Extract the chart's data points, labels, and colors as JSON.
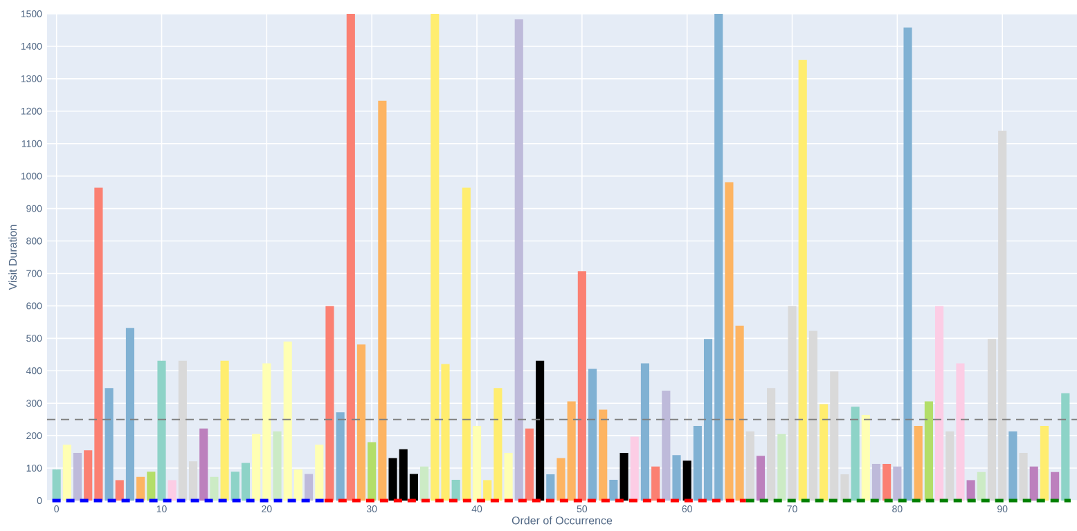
{
  "chart_data": {
    "type": "bar",
    "xlabel": "Order of Occurrence",
    "ylabel": "Visit Duration",
    "xlim": [
      -0.9,
      97.1
    ],
    "ylim": [
      0,
      1500
    ],
    "xticks": [
      0,
      10,
      20,
      30,
      40,
      50,
      60,
      70,
      80,
      90
    ],
    "yticks": [
      0,
      100,
      200,
      300,
      400,
      500,
      600,
      700,
      800,
      900,
      1000,
      1100,
      1200,
      1300,
      1400,
      1500
    ],
    "grid": true,
    "ref_lines": [
      {
        "axis": "y",
        "value": 250,
        "color": "#808080",
        "line_style": "dashed"
      }
    ],
    "series": [
      {
        "x": [
          0,
          1,
          2,
          3,
          4,
          5,
          6,
          7,
          8,
          9,
          10,
          11,
          12,
          13,
          14,
          15,
          16,
          17,
          18,
          19,
          20,
          21,
          22,
          23,
          24,
          25,
          26,
          27,
          28,
          29,
          30,
          31,
          32,
          33,
          34,
          35,
          36,
          37,
          38,
          39,
          40,
          41,
          42,
          43,
          44,
          45,
          46,
          47,
          48,
          49,
          50,
          51,
          52,
          53,
          54,
          55,
          56,
          57,
          58,
          59,
          60,
          61,
          62,
          63,
          64,
          65,
          66,
          67,
          68,
          69,
          70,
          71,
          72,
          73,
          74,
          75,
          76,
          77,
          78,
          79,
          80,
          81,
          82,
          83,
          84,
          85,
          86,
          87,
          88,
          89,
          90,
          91,
          92,
          93,
          94,
          95,
          96
        ],
        "values": [
          96,
          172,
          147,
          155,
          964,
          347,
          63,
          532,
          73,
          89,
          431,
          63,
          431,
          121,
          222,
          73,
          431,
          89,
          116,
          205,
          423,
          213,
          490,
          96,
          82,
          172,
          599,
          272,
          1500,
          481,
          180,
          1232,
          131,
          158,
          82,
          105,
          1500,
          421,
          64,
          964,
          230,
          63,
          347,
          147,
          1483,
          222,
          431,
          81,
          131,
          306,
          707,
          406,
          280,
          64,
          147,
          197,
          423,
          105,
          339,
          140,
          123,
          230,
          498,
          1500,
          981,
          539,
          213,
          138,
          347,
          205,
          599,
          1358,
          523,
          297,
          398,
          81,
          289,
          264,
          113,
          113,
          105,
          1458,
          230,
          306,
          599,
          213,
          423,
          63,
          88,
          498,
          1140,
          213,
          147,
          105,
          230,
          88,
          331
        ],
        "colors": [
          "#8dd3c7",
          "#ffffb3",
          "#bebada",
          "#fb8072",
          "#fb8072",
          "#80b1d3",
          "#fb8072",
          "#80b1d3",
          "#fdb462",
          "#b3de69",
          "#8dd3c7",
          "#fccde5",
          "#d9d9d9",
          "#d9d9d9",
          "#bc80bd",
          "#ccebc5",
          "#ffed6f",
          "#8dd3c7",
          "#8dd3c7",
          "#ffffb3",
          "#ffffb3",
          "#ccebc5",
          "#ffffb3",
          "#ffffb3",
          "#bebada",
          "#ffffb3",
          "#fb8072",
          "#80b1d3",
          "#fb8072",
          "#fdb462",
          "#b3de69",
          "#fdb462",
          "#000000",
          "#000000",
          "#000000",
          "#ccebc5",
          "#ffed6f",
          "#ffed6f",
          "#8dd3c7",
          "#ffed6f",
          "#ffffb3",
          "#ffed6f",
          "#ffed6f",
          "#ffffb3",
          "#bebada",
          "#fb8072",
          "#000000",
          "#80b1d3",
          "#fdb462",
          "#fdb462",
          "#fb8072",
          "#80b1d3",
          "#fdb462",
          "#80b1d3",
          "#000000",
          "#fccde5",
          "#80b1d3",
          "#fb8072",
          "#bebada",
          "#80b1d3",
          "#000000",
          "#80b1d3",
          "#80b1d3",
          "#80b1d3",
          "#fdb462",
          "#fdb462",
          "#d9d9d9",
          "#bc80bd",
          "#d9d9d9",
          "#ccebc5",
          "#d9d9d9",
          "#ffed6f",
          "#d9d9d9",
          "#ffed6f",
          "#d9d9d9",
          "#d9d9d9",
          "#8dd3c7",
          "#ffffb3",
          "#bebada",
          "#fb8072",
          "#bebada",
          "#80b1d3",
          "#fdb462",
          "#b3de69",
          "#fccde5",
          "#d9d9d9",
          "#fccde5",
          "#bc80bd",
          "#ccebc5",
          "#d9d9d9",
          "#d9d9d9",
          "#80b1d3",
          "#d9d9d9",
          "#bc80bd",
          "#ffed6f",
          "#bc80bd",
          "#8dd3c7"
        ]
      },
      {
        "type": "line",
        "x": [
          -0.4,
          25.5
        ],
        "values": [
          0,
          0
        ],
        "color": "#0000ff",
        "line_style": "dashed"
      },
      {
        "type": "line",
        "x": [
          25.5,
          65.6
        ],
        "values": [
          0,
          0
        ],
        "color": "#ff0000",
        "line_style": "dashed"
      },
      {
        "type": "line",
        "x": [
          65.6,
          96.5
        ],
        "values": [
          0,
          0
        ],
        "color": "#008000",
        "line_style": "dashed"
      }
    ]
  }
}
